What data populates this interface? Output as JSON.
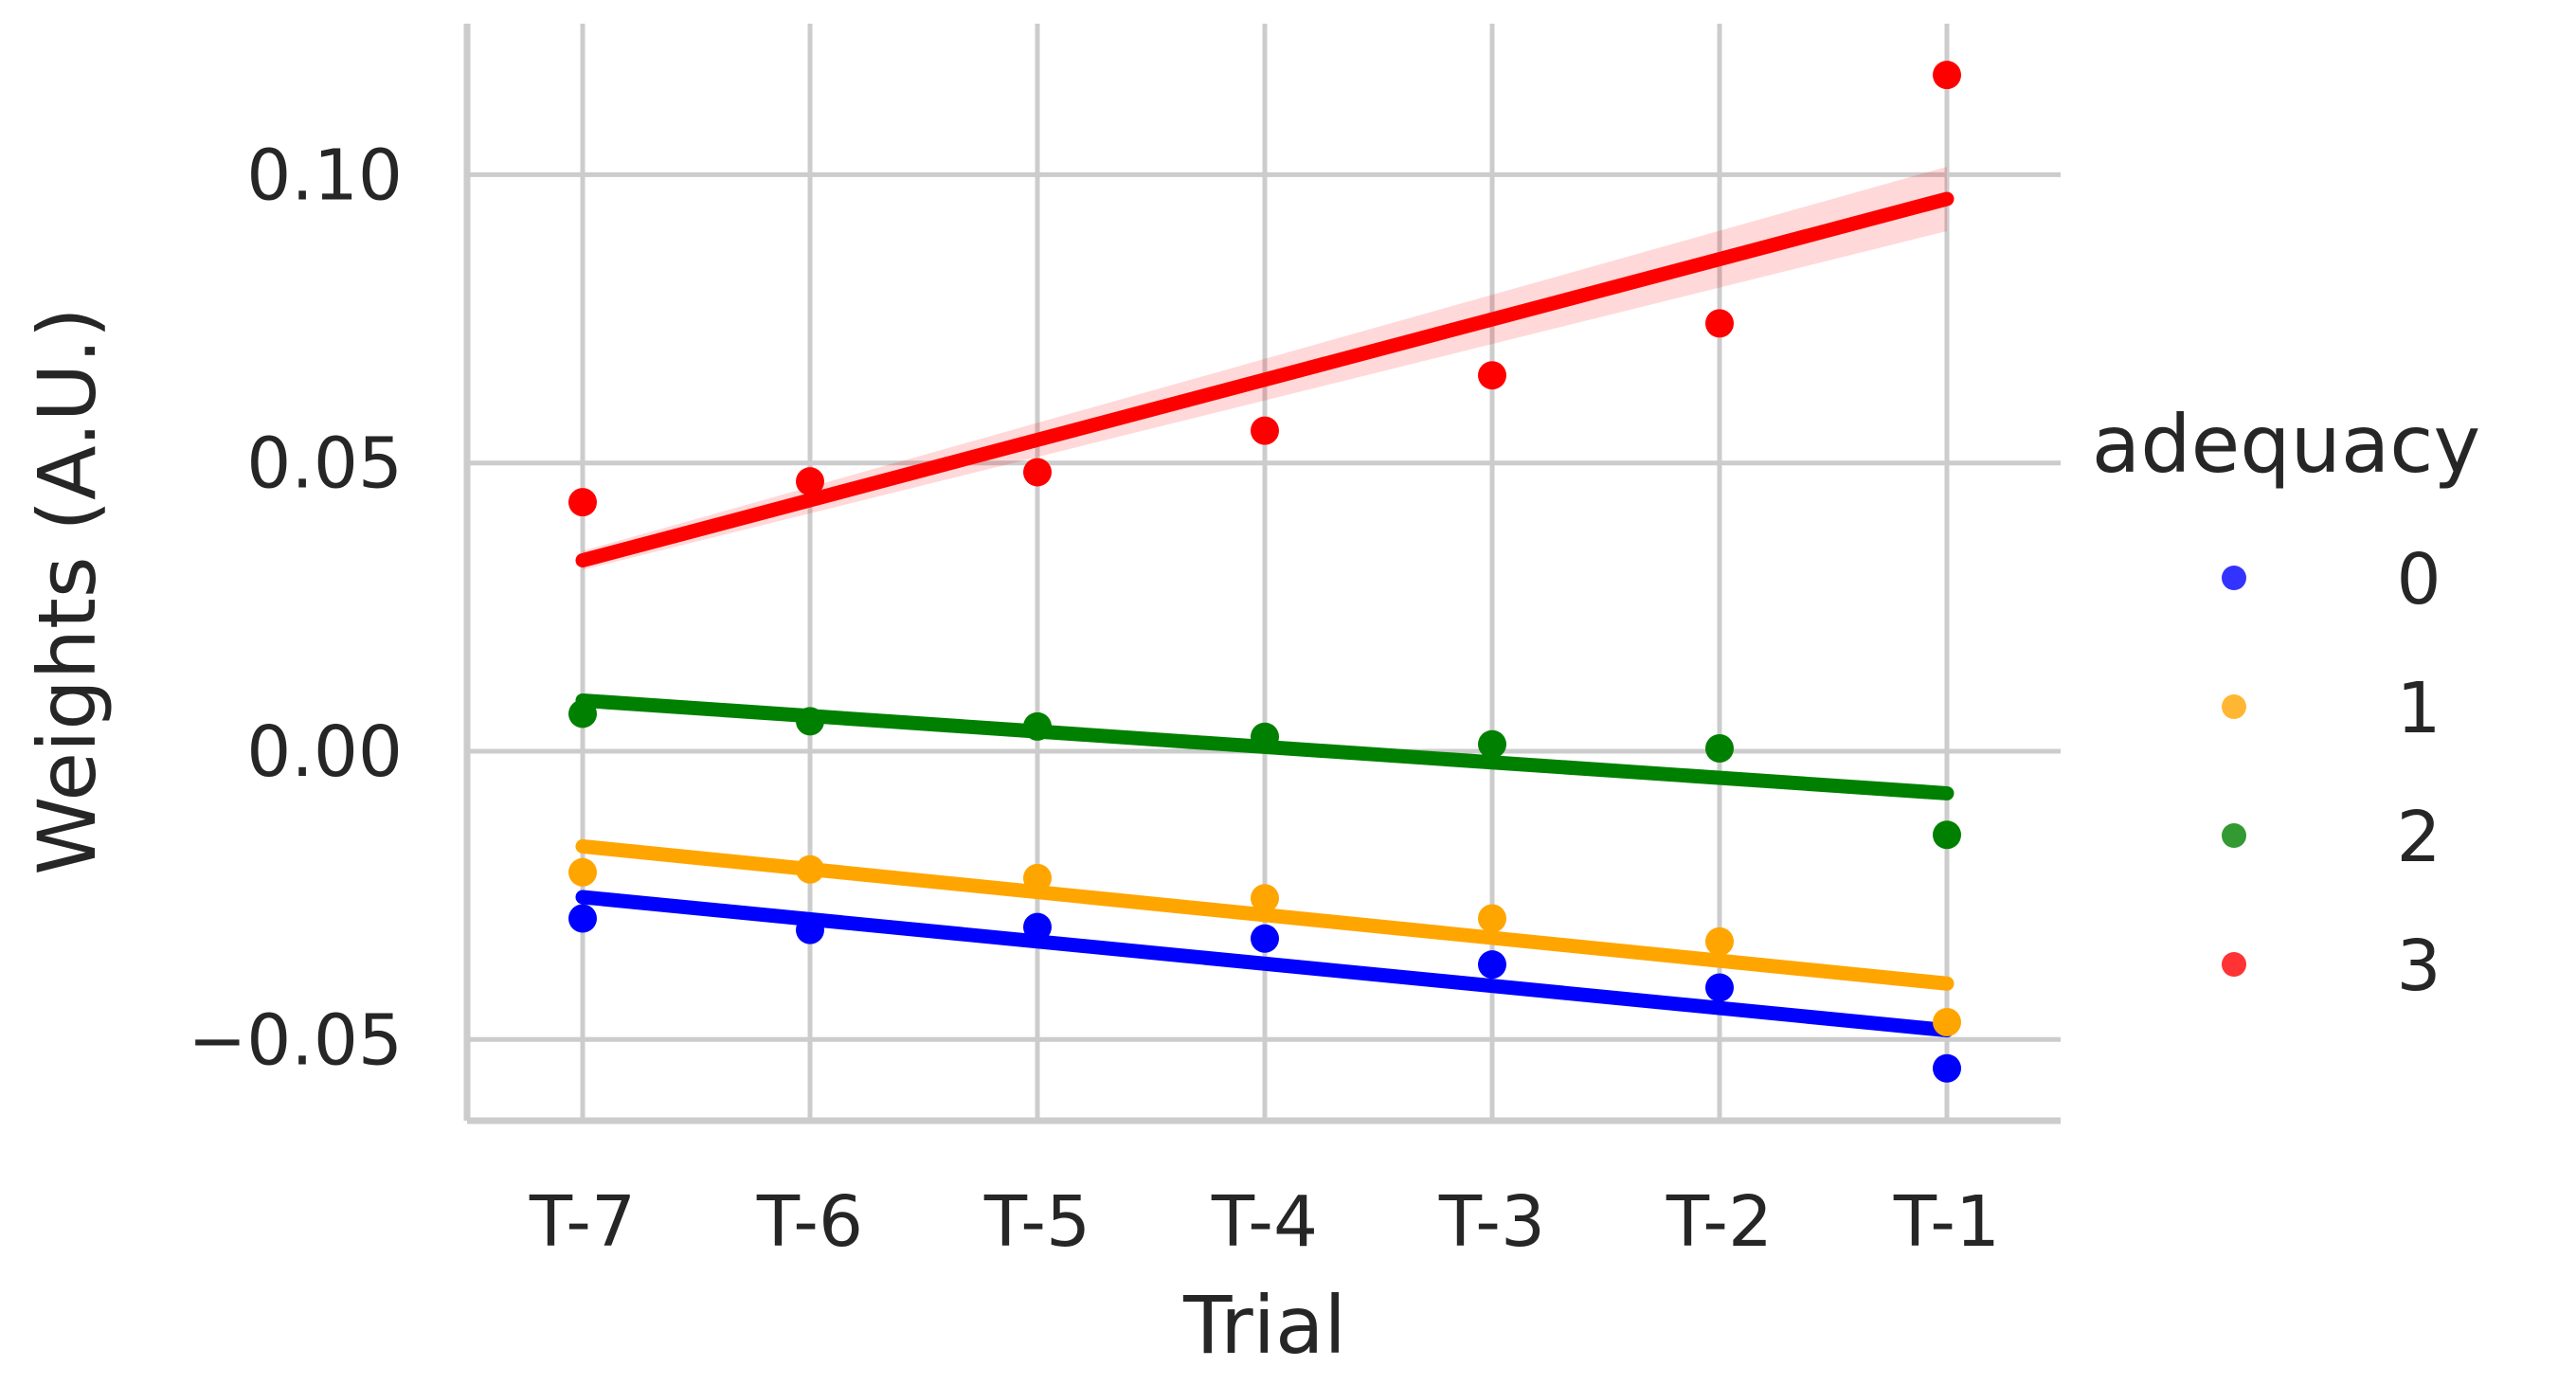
{
  "chart_data": {
    "type": "scatter",
    "title": "",
    "xlabel": "Trial",
    "ylabel": "Weights (A.U.)",
    "categories": [
      "T-7",
      "T-6",
      "T-5",
      "T-4",
      "T-3",
      "T-2",
      "T-1"
    ],
    "yticks": [
      -0.05,
      0.0,
      0.05,
      0.1
    ],
    "ytick_labels": [
      "−0.05",
      "0.00",
      "0.05",
      "0.10"
    ],
    "ylim": [
      -0.064,
      0.127
    ],
    "grid": true,
    "legend": {
      "title": "adequacy",
      "placement": "right"
    },
    "series": [
      {
        "name": "0",
        "color": "#0000ff",
        "values": [
          -0.029,
          -0.031,
          -0.0305,
          -0.0325,
          -0.037,
          -0.041,
          -0.055
        ],
        "fit": [
          -0.0253,
          -0.0484
        ]
      },
      {
        "name": "1",
        "color": "#ffa500",
        "values": [
          -0.021,
          -0.0205,
          -0.022,
          -0.0255,
          -0.029,
          -0.033,
          -0.047
        ],
        "fit": [
          -0.0165,
          -0.0403
        ]
      },
      {
        "name": "2",
        "color": "#008000",
        "values": [
          0.0065,
          0.0052,
          0.0043,
          0.0025,
          0.0012,
          0.0005,
          -0.0145
        ],
        "fit": [
          0.0088,
          -0.0073
        ]
      },
      {
        "name": "3",
        "color": "#ff0000",
        "values": [
          0.0432,
          0.0468,
          0.0484,
          0.0556,
          0.0652,
          0.0742,
          0.1173
        ],
        "fit": [
          0.0331,
          0.0958
        ]
      }
    ]
  }
}
